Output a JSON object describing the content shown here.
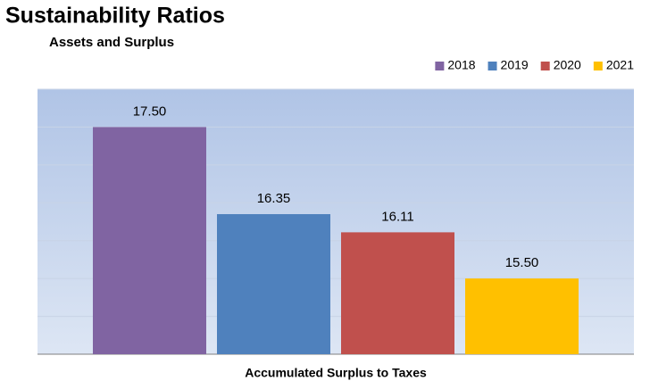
{
  "chart_data": {
    "type": "bar",
    "title": "Sustainability Ratios",
    "subtitle": "Assets and Surplus",
    "categories": [
      "Accumulated Surplus to Taxes"
    ],
    "series": [
      {
        "name": "2018",
        "color": "#8064a2",
        "values": [
          17.5
        ],
        "value_labels": [
          "17.50"
        ]
      },
      {
        "name": "2019",
        "color": "#4f81bd",
        "values": [
          16.35
        ],
        "value_labels": [
          "16.35"
        ]
      },
      {
        "name": "2020",
        "color": "#c0504d",
        "values": [
          16.11
        ],
        "value_labels": [
          "16.11"
        ]
      },
      {
        "name": "2021",
        "color": "#ffc000",
        "values": [
          15.5
        ],
        "value_labels": [
          "15.50"
        ]
      }
    ],
    "ylim": [
      14.5,
      18
    ],
    "yticks": [
      14.5,
      15,
      15.5,
      16,
      16.5,
      17,
      17.5,
      18
    ],
    "grid": true,
    "legend": "top-right"
  }
}
